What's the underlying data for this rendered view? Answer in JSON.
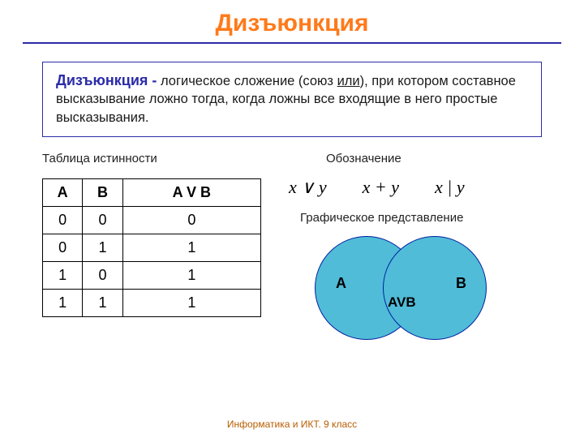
{
  "colors": {
    "title": "#ff7a1a",
    "rule": "#2b2ba8",
    "def_border": "#2b2ba8",
    "def_term": "#2b2ba8",
    "circle_fill": "#50bcd8",
    "circle_stroke": "#0020a0",
    "footer": "#b85c00"
  },
  "title": "Дизъюнкция",
  "definition": {
    "term": "Дизъюнкция -",
    "text_before_union": " логическое сложение (союз ",
    "union_word": "или",
    "text_after_union": "), при котором составное высказывание ложно тогда, когда ложны все входящие в него простые высказывания."
  },
  "left": {
    "heading": "Таблица истинности",
    "table": {
      "columns": [
        "A",
        "B",
        "A V B"
      ],
      "rows": [
        [
          "0",
          "0",
          "0"
        ],
        [
          "0",
          "1",
          "1"
        ],
        [
          "1",
          "0",
          "1"
        ],
        [
          "1",
          "1",
          "1"
        ]
      ]
    }
  },
  "right": {
    "notation_heading": "Обозначение",
    "notation": [
      "x ∨ y",
      "x + y",
      "x | y"
    ],
    "graphic_heading": "Графическое представление",
    "venn": {
      "labelA": "A",
      "labelB": "B",
      "labelAVB": "AVB"
    }
  },
  "footer": "Информатика и ИКТ. 9 класс"
}
